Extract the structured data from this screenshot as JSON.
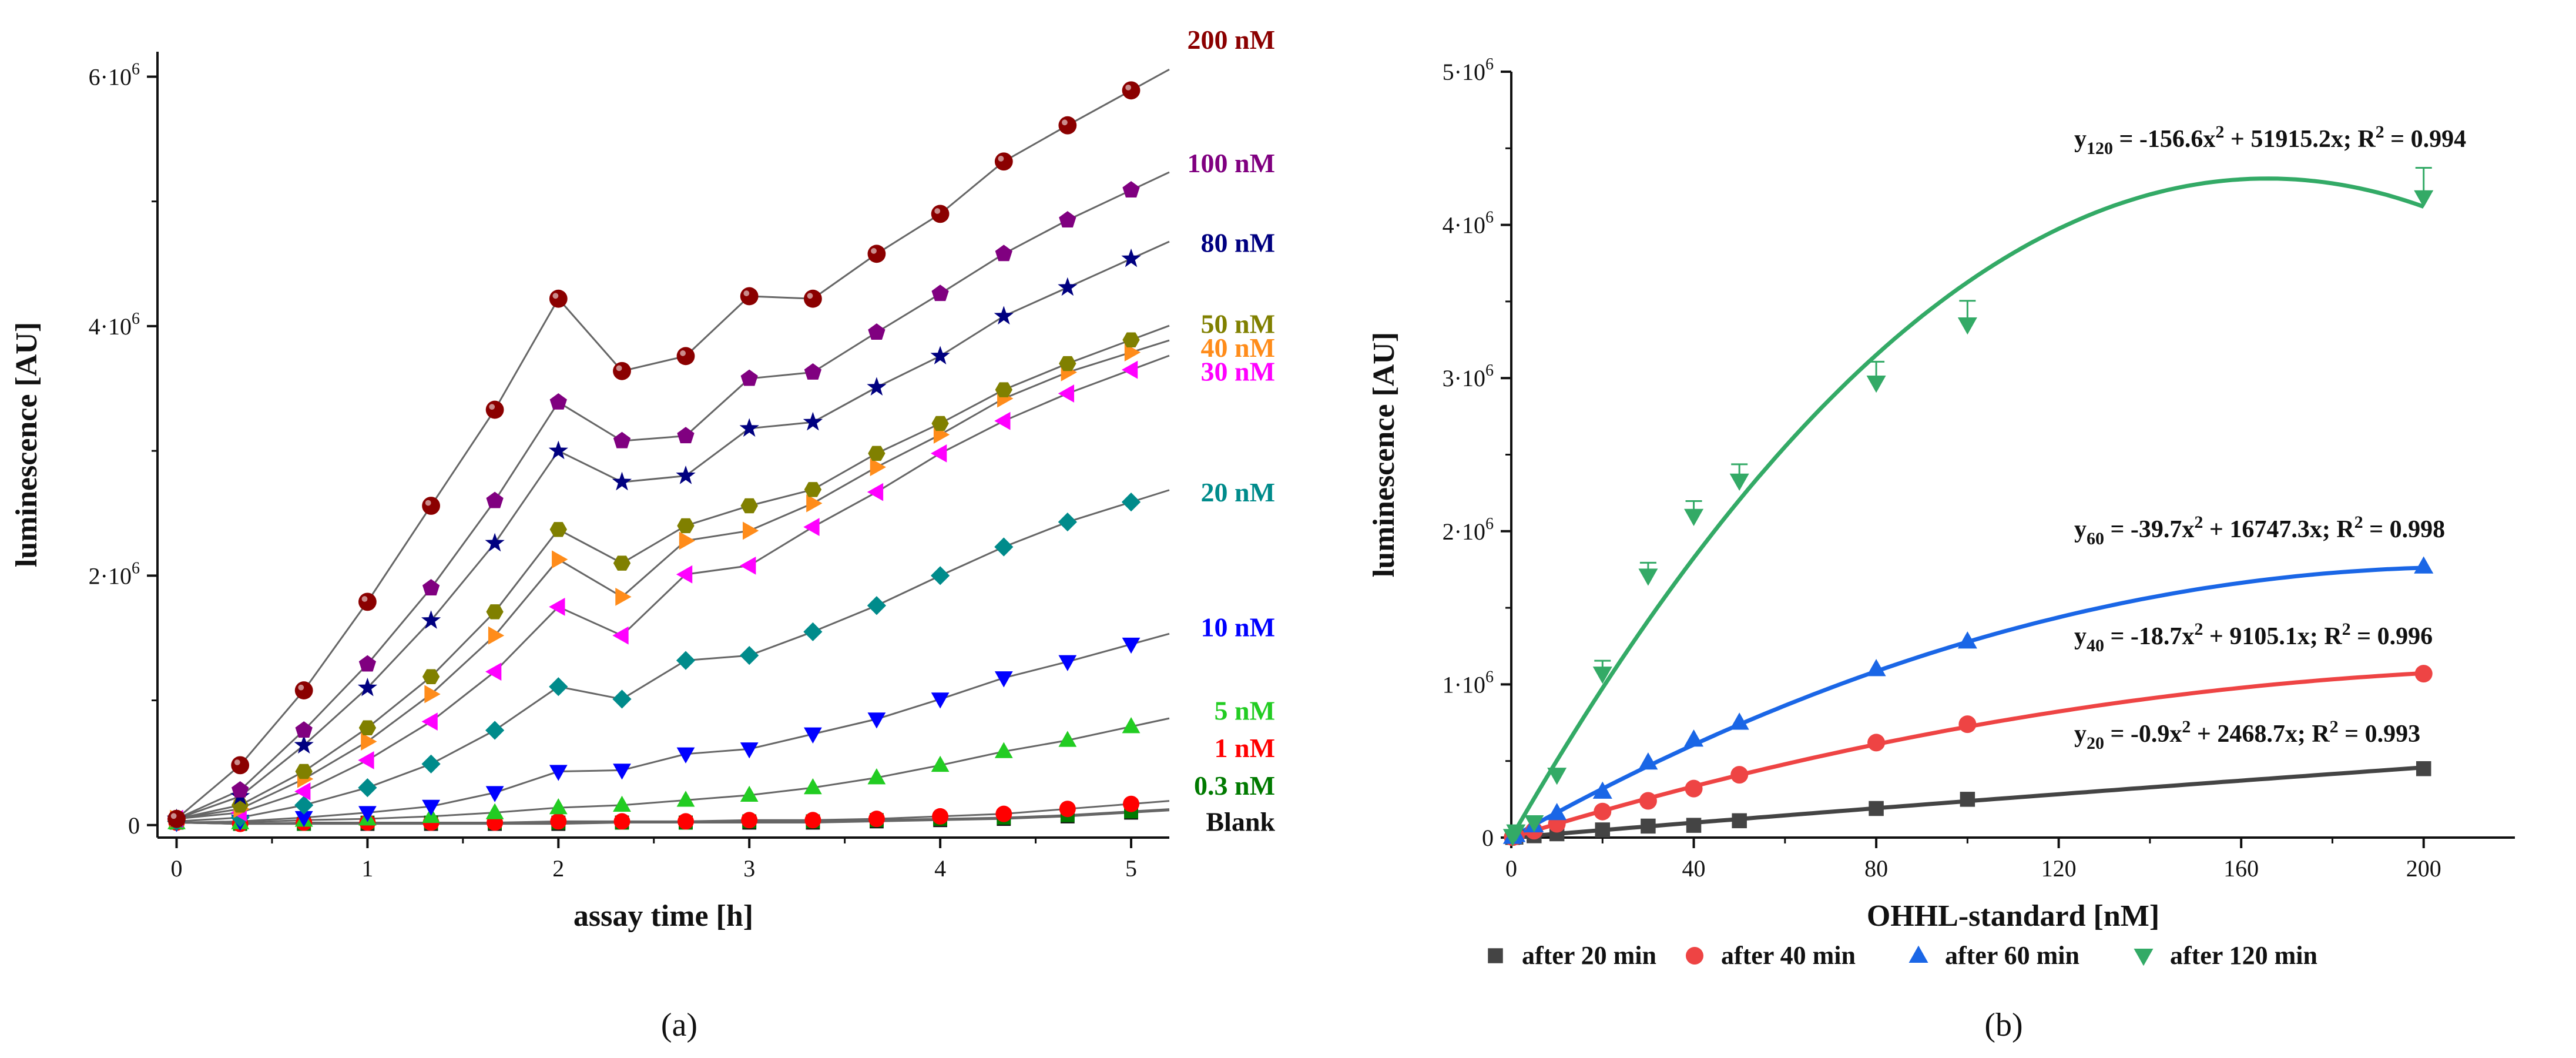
{
  "chart_data": [
    {
      "panel": "a",
      "type": "line",
      "xlabel": "assay time [h]",
      "ylabel": "luminescence [AU]",
      "xlim": [
        -0.1,
        5.2
      ],
      "ylim": [
        -100000,
        6200000
      ],
      "x_ticks": [
        0,
        1,
        2,
        3,
        4,
        5
      ],
      "x_tick_labels": [
        "0",
        "1",
        "2",
        "3",
        "4",
        "5"
      ],
      "y_ticks": [
        0,
        2000000,
        4000000,
        6000000
      ],
      "y_tick_labels": [
        {
          "base": "0",
          "exp": ""
        },
        {
          "base": "2·10",
          "exp": "6"
        },
        {
          "base": "4·10",
          "exp": "6"
        },
        {
          "base": "6·10",
          "exp": "6"
        }
      ],
      "x": [
        0,
        0.333,
        0.667,
        1,
        1.333,
        1.667,
        2,
        2.333,
        2.667,
        3,
        3.333,
        3.667,
        4,
        4.333,
        4.667,
        5
      ],
      "series": [
        {
          "name": "200 nM",
          "color": "#8b0000",
          "marker": "sphere",
          "label_value": 6300000,
          "values": [
            50000,
            480000,
            1080000,
            1790000,
            2560000,
            3330000,
            4220000,
            3640000,
            3760000,
            4240000,
            4220000,
            4580000,
            4900000,
            5320000,
            5610000,
            5890000
          ]
        },
        {
          "name": "100 nM",
          "color": "#800080",
          "marker": "pentagon",
          "label_value": 5310000,
          "values": [
            50000,
            280000,
            760000,
            1290000,
            1900000,
            2600000,
            3390000,
            3080000,
            3120000,
            3580000,
            3630000,
            3950000,
            4260000,
            4580000,
            4850000,
            5090000
          ]
        },
        {
          "name": "80 nM",
          "color": "#000080",
          "marker": "star",
          "label_value": 4670000,
          "values": [
            50000,
            230000,
            640000,
            1100000,
            1640000,
            2260000,
            3000000,
            2750000,
            2800000,
            3180000,
            3230000,
            3510000,
            3760000,
            4080000,
            4310000,
            4540000
          ]
        },
        {
          "name": "50 nM",
          "color": "#808000",
          "marker": "hexagon",
          "label_value": 4020000,
          "values": [
            50000,
            160000,
            430000,
            780000,
            1190000,
            1710000,
            2370000,
            2100000,
            2400000,
            2560000,
            2690000,
            2980000,
            3220000,
            3490000,
            3700000,
            3890000
          ]
        },
        {
          "name": "40 nM",
          "color": "#ff8c1a",
          "marker": "tri-right",
          "label_value": 3830000,
          "values": [
            50000,
            130000,
            370000,
            670000,
            1050000,
            1520000,
            2130000,
            1830000,
            2280000,
            2360000,
            2580000,
            2870000,
            3130000,
            3420000,
            3630000,
            3790000
          ]
        },
        {
          "name": "30 nM",
          "color": "#ff00ff",
          "marker": "tri-left",
          "label_value": 3640000,
          "values": [
            50000,
            100000,
            270000,
            520000,
            830000,
            1230000,
            1750000,
            1520000,
            2010000,
            2080000,
            2390000,
            2670000,
            2980000,
            3240000,
            3460000,
            3650000
          ]
        },
        {
          "name": "20 nM",
          "color": "#008b8b",
          "marker": "diamond",
          "label_value": 2670000,
          "values": [
            30000,
            60000,
            160000,
            300000,
            490000,
            760000,
            1110000,
            1010000,
            1320000,
            1360000,
            1550000,
            1760000,
            2000000,
            2230000,
            2430000,
            2590000
          ]
        },
        {
          "name": "10 nM",
          "color": "#0000ff",
          "marker": "tri-down",
          "label_value": 1590000,
          "values": [
            20000,
            30000,
            60000,
            100000,
            150000,
            260000,
            430000,
            440000,
            570000,
            610000,
            730000,
            850000,
            1010000,
            1180000,
            1310000,
            1450000
          ]
        },
        {
          "name": "5 nM",
          "color": "#22cc22",
          "marker": "tri-up",
          "label_value": 920000,
          "values": [
            20000,
            20000,
            40000,
            50000,
            70000,
            100000,
            140000,
            160000,
            200000,
            240000,
            300000,
            380000,
            480000,
            590000,
            680000,
            790000
          ]
        },
        {
          "name": "1 nM",
          "color": "#ff0000",
          "marker": "circle",
          "label_value": 620000,
          "values": [
            20000,
            10000,
            20000,
            20000,
            20000,
            20000,
            30000,
            30000,
            30000,
            40000,
            40000,
            50000,
            70000,
            90000,
            130000,
            170000
          ]
        },
        {
          "name": "0.3 nM",
          "color": "#007a00",
          "marker": "square",
          "label_value": 320000,
          "values": [
            20000,
            10000,
            10000,
            20000,
            20000,
            20000,
            20000,
            20000,
            20000,
            30000,
            30000,
            40000,
            50000,
            60000,
            80000,
            110000
          ]
        },
        {
          "name": "Blank",
          "color": "#111111",
          "marker": "square",
          "label_value": 30000,
          "values": [
            20000,
            10000,
            10000,
            10000,
            10000,
            10000,
            10000,
            20000,
            20000,
            20000,
            20000,
            30000,
            40000,
            50000,
            70000,
            100000
          ]
        }
      ]
    },
    {
      "panel": "b",
      "type": "scatter",
      "xlabel": "OHHL-standard [nM]",
      "ylabel": "luminescence [AU]",
      "xlim": [
        0,
        220
      ],
      "ylim": [
        0,
        5000000
      ],
      "x_ticks": [
        0,
        40,
        80,
        120,
        160,
        200
      ],
      "x_tick_labels": [
        "0",
        "40",
        "80",
        "120",
        "160",
        "200"
      ],
      "y_ticks": [
        0,
        1000000,
        2000000,
        3000000,
        4000000,
        5000000
      ],
      "y_tick_labels": [
        {
          "base": "0",
          "exp": ""
        },
        {
          "base": "1·10",
          "exp": "6"
        },
        {
          "base": "2·10",
          "exp": "6"
        },
        {
          "base": "3·10",
          "exp": "6"
        },
        {
          "base": "4·10",
          "exp": "6"
        },
        {
          "base": "5·10",
          "exp": "6"
        }
      ],
      "x": [
        0.3,
        1,
        5,
        10,
        20,
        30,
        40,
        50,
        80,
        100,
        200
      ],
      "series": [
        {
          "name": "after 20 min",
          "color": "#444444",
          "marker": "square",
          "fit": {
            "a": -0.9,
            "b": 2468.7
          },
          "values": [
            1000,
            3000,
            12000,
            25000,
            50000,
            75000,
            80000,
            110000,
            190000,
            250000,
            450000
          ]
        },
        {
          "name": "after 40 min",
          "color": "#ee4444",
          "marker": "circle",
          "fit": {
            "a": -18.7,
            "b": 9105.1
          },
          "values": [
            3000,
            10000,
            45000,
            90000,
            170000,
            240000,
            320000,
            410000,
            620000,
            740000,
            1070000
          ]
        },
        {
          "name": "after 60 min",
          "color": "#1a66e6",
          "marker": "tri-up",
          "fit": {
            "a": -39.7,
            "b": 16747.3
          },
          "values": [
            5000,
            17000,
            80000,
            160000,
            300000,
            490000,
            640000,
            750000,
            1100000,
            1280000,
            1770000
          ]
        },
        {
          "name": "after 120 min",
          "color": "#33aa66",
          "marker": "tri-down",
          "fit": {
            "a": -156.6,
            "b": 51915.2
          },
          "values": [
            10000,
            40000,
            100000,
            410000,
            1070000,
            1710000,
            2100000,
            2330000,
            2970000,
            3350000,
            4180000
          ]
        }
      ],
      "equations": [
        {
          "series": "after 120 min",
          "sub": "120",
          "mid": " = -156.6x",
          "tail": " + 51915.2x; R",
          "end": " = 0.994"
        },
        {
          "series": "after 60 min",
          "sub": "60",
          "mid": " = -39.7x",
          "tail": " + 16747.3x; R",
          "end": " = 0.998"
        },
        {
          "series": "after 40 min",
          "sub": "40",
          "mid": " = -18.7x",
          "tail": " + 9105.1x; R",
          "end": " = 0.996"
        },
        {
          "series": "after 20 min",
          "sub": "20",
          "mid": " = -0.9x",
          "tail": " + 2468.7x;  R",
          "end": " = 0.993"
        }
      ]
    }
  ],
  "captions": {
    "a": "(a)",
    "b": "(b)"
  }
}
